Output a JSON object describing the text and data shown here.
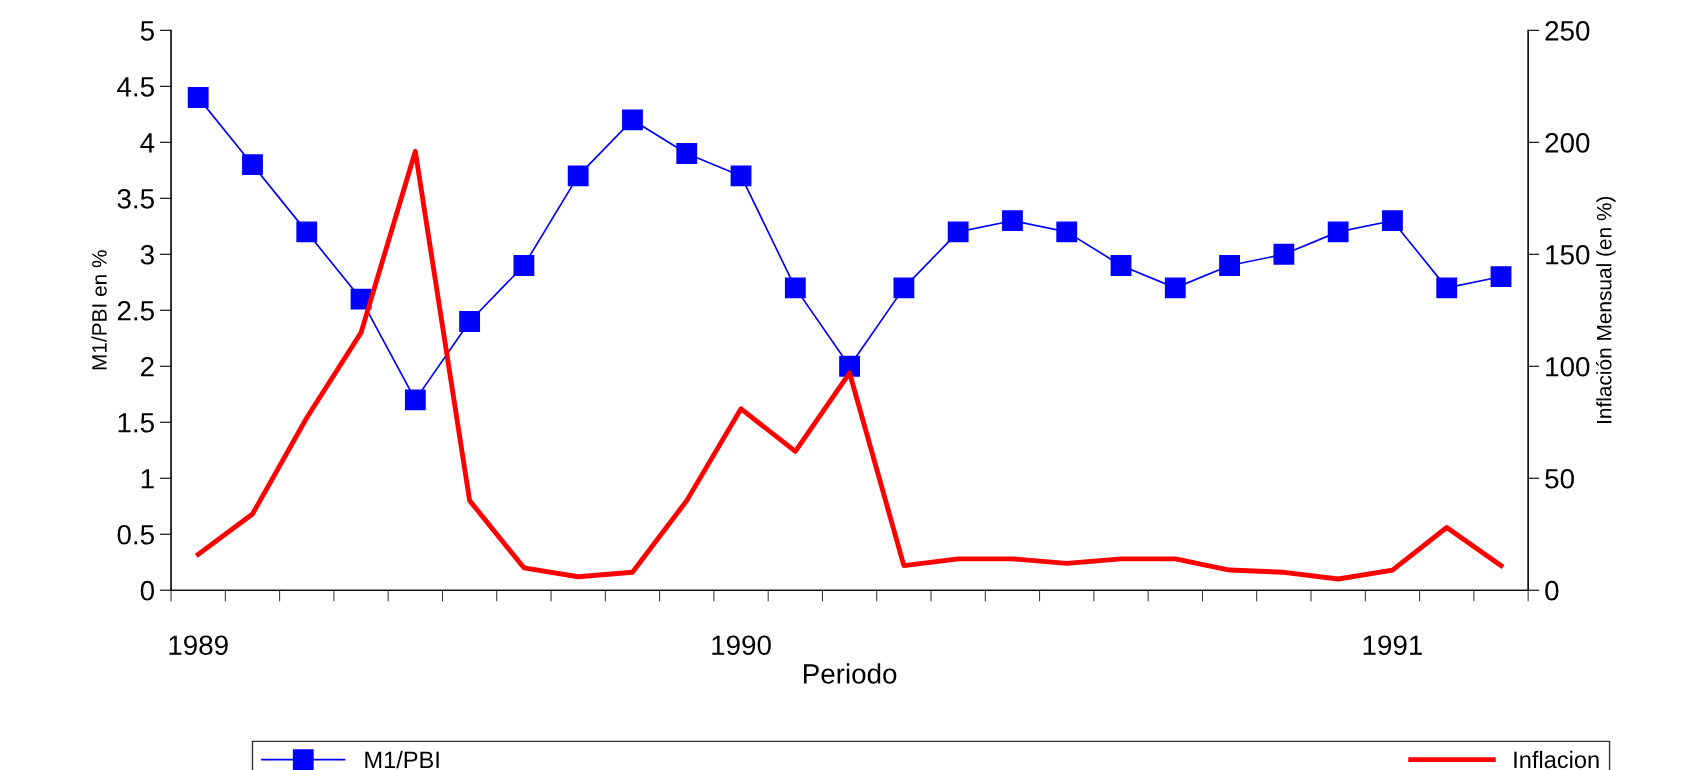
{
  "chart_data": {
    "type": "line",
    "xlabel": "Periodo",
    "ylabel": "M1/PBI en %",
    "y2label": "Inflación Mensual (en %)",
    "categories": [
      "1989",
      null,
      null,
      null,
      null,
      null,
      null,
      null,
      null,
      null,
      "1990",
      null,
      null,
      null,
      null,
      null,
      null,
      null,
      null,
      null,
      null,
      null,
      "1991",
      null,
      null
    ],
    "series": [
      {
        "name": "M1/PBI",
        "color": "#0000ff",
        "marker": "square",
        "values": [
          4.4,
          3.8,
          3.2,
          2.6,
          1.7,
          2.4,
          2.9,
          3.7,
          4.2,
          3.9,
          3.7,
          2.7,
          2.0,
          2.7,
          3.2,
          3.3,
          3.2,
          2.9,
          2.7,
          2.9,
          3.0,
          3.2,
          3.3,
          2.7,
          2.8
        ]
      },
      {
        "name": "Inflacion",
        "color": "#ff0000",
        "axis": "y2",
        "marker": "none",
        "values": [
          16,
          34,
          77,
          115,
          196,
          40,
          10,
          6,
          8,
          40,
          81,
          62,
          97,
          11,
          14,
          14,
          12,
          14,
          14,
          9,
          8,
          5,
          9,
          28,
          11
        ]
      }
    ],
    "ylim": [
      0,
      5
    ],
    "yticks": [
      0,
      0.5,
      1,
      1.5,
      2,
      2.5,
      3,
      3.5,
      4,
      4.5,
      5
    ],
    "y2lim": [
      0,
      250
    ],
    "y2ticks": [
      0,
      50,
      100,
      150,
      200,
      250
    ],
    "grid": false,
    "legend": "bottom"
  }
}
